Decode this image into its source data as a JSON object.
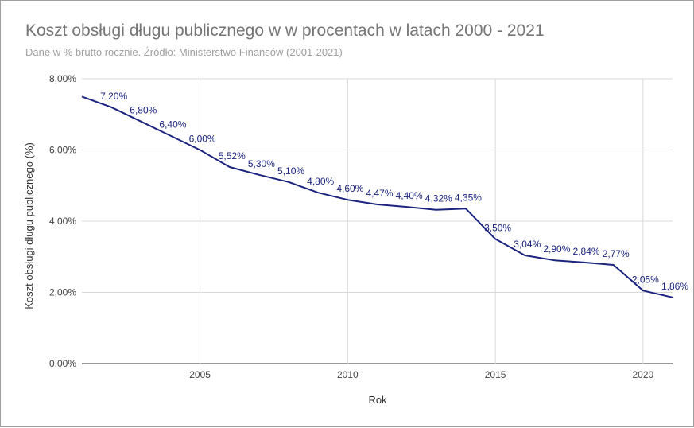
{
  "chart_data": {
    "type": "line",
    "title": "Koszt obsługi długu publicznego w w procentach w latach 2000 - 2021",
    "subtitle": "Dane w % brutto rocznie. Źródło: Ministerstwo Finansów (2001-2021)",
    "xlabel": "Rok",
    "ylabel": "Koszt obsługi długu publicznego (%)",
    "xlim": [
      2001,
      2021
    ],
    "ylim": [
      0,
      8
    ],
    "x_ticks": [
      2005,
      2010,
      2015,
      2020
    ],
    "y_ticks": [
      0,
      2,
      4,
      6,
      8
    ],
    "y_tick_labels": [
      "0,00%",
      "2,00%",
      "4,00%",
      "6,00%",
      "8,00%"
    ],
    "grid": true,
    "line_color": "#1a237e",
    "grid_color": "#d9d9d9",
    "points": [
      {
        "x": 2001,
        "y": 7.5,
        "label": ""
      },
      {
        "x": 2002,
        "y": 7.2,
        "label": "7,20%"
      },
      {
        "x": 2003,
        "y": 6.8,
        "label": "6,80%"
      },
      {
        "x": 2004,
        "y": 6.4,
        "label": "6,40%"
      },
      {
        "x": 2005,
        "y": 6.0,
        "label": "6,00%"
      },
      {
        "x": 2006,
        "y": 5.52,
        "label": "5,52%"
      },
      {
        "x": 2007,
        "y": 5.3,
        "label": "5,30%"
      },
      {
        "x": 2008,
        "y": 5.1,
        "label": "5,10%"
      },
      {
        "x": 2009,
        "y": 4.8,
        "label": "4,80%"
      },
      {
        "x": 2010,
        "y": 4.6,
        "label": "4,60%"
      },
      {
        "x": 2011,
        "y": 4.47,
        "label": "4,47%"
      },
      {
        "x": 2012,
        "y": 4.4,
        "label": "4,40%"
      },
      {
        "x": 2013,
        "y": 4.32,
        "label": "4,32%"
      },
      {
        "x": 2014,
        "y": 4.35,
        "label": "4,35%"
      },
      {
        "x": 2015,
        "y": 3.5,
        "label": "3,50%"
      },
      {
        "x": 2016,
        "y": 3.04,
        "label": "3,04%"
      },
      {
        "x": 2017,
        "y": 2.9,
        "label": "2,90%"
      },
      {
        "x": 2018,
        "y": 2.84,
        "label": "2,84%"
      },
      {
        "x": 2019,
        "y": 2.77,
        "label": "2,77%"
      },
      {
        "x": 2020,
        "y": 2.05,
        "label": "2,05%"
      },
      {
        "x": 2021,
        "y": 1.86,
        "label": "1,86%"
      }
    ]
  }
}
